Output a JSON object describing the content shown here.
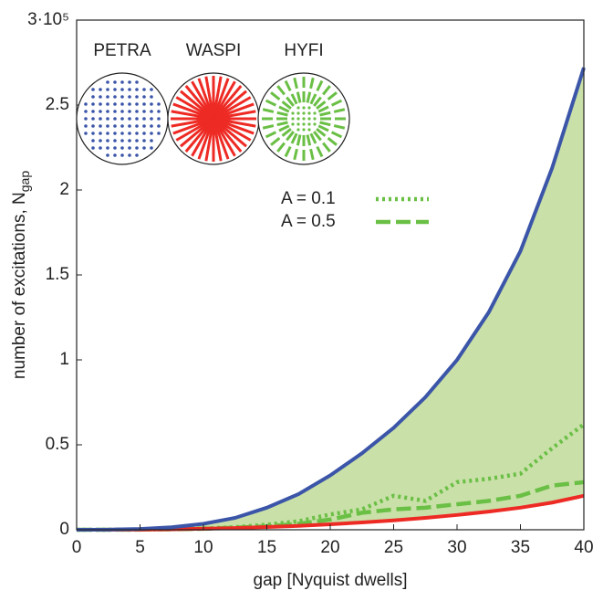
{
  "chart_data": {
    "type": "line",
    "xlabel": "gap [Nyquist dwells]",
    "ylabel": "number of excitations, N",
    "ylabel_subscript": "gap",
    "x": [
      0,
      2.5,
      5,
      7.5,
      10,
      12.5,
      15,
      17.5,
      20,
      22.5,
      25,
      27.5,
      30,
      32.5,
      35,
      37.5,
      40
    ],
    "series": [
      {
        "color": "#3b55a8",
        "style": "solid",
        "values": [
          0,
          70,
          500,
          1500,
          3500,
          7000,
          13000,
          21000,
          32000,
          45000,
          60000,
          78000,
          100000,
          128000,
          164000,
          213000,
          272000
        ]
      },
      {
        "color": "#ee2a24",
        "style": "solid",
        "values": [
          0,
          30,
          100,
          300,
          600,
          1000,
          1600,
          2300,
          3200,
          4300,
          5500,
          7000,
          8700,
          10700,
          13000,
          16000,
          20000
        ]
      },
      {
        "name": "A = 0.1",
        "color": "#6abf45",
        "style": "dotted",
        "values": [
          0,
          30,
          100,
          300,
          700,
          1500,
          3000,
          5000,
          9000,
          12000,
          20000,
          17000,
          28000,
          30000,
          33000,
          48000,
          62000
        ]
      },
      {
        "name": "A = 0.5",
        "color": "#6abf45",
        "style": "dashed",
        "values": [
          0,
          30,
          100,
          300,
          600,
          1200,
          2000,
          3500,
          6000,
          10000,
          12000,
          13000,
          15000,
          17000,
          20000,
          26000,
          28000
        ]
      }
    ],
    "fill_between": {
      "color": "#c9e0a8"
    },
    "xlim": [
      0,
      40
    ],
    "xticks": [
      0,
      5,
      10,
      15,
      20,
      25,
      30,
      35,
      40
    ],
    "ylim": [
      0,
      300000
    ],
    "yticks": [
      0,
      {
        "value": 50000,
        "label": "0.5"
      },
      {
        "value": 100000,
        "label": "1"
      },
      {
        "value": 150000,
        "label": "1.5"
      },
      {
        "value": 200000,
        "label": "2"
      },
      {
        "value": 250000,
        "label": "2.5"
      },
      {
        "value": 300000,
        "label": "3·10⁵"
      }
    ],
    "insets": [
      {
        "label": "PETRA",
        "color": "#3b55a8"
      },
      {
        "label": "WASPI",
        "color": "#ee2a24"
      },
      {
        "label": "HYFI",
        "color": "#6abf45"
      }
    ]
  }
}
